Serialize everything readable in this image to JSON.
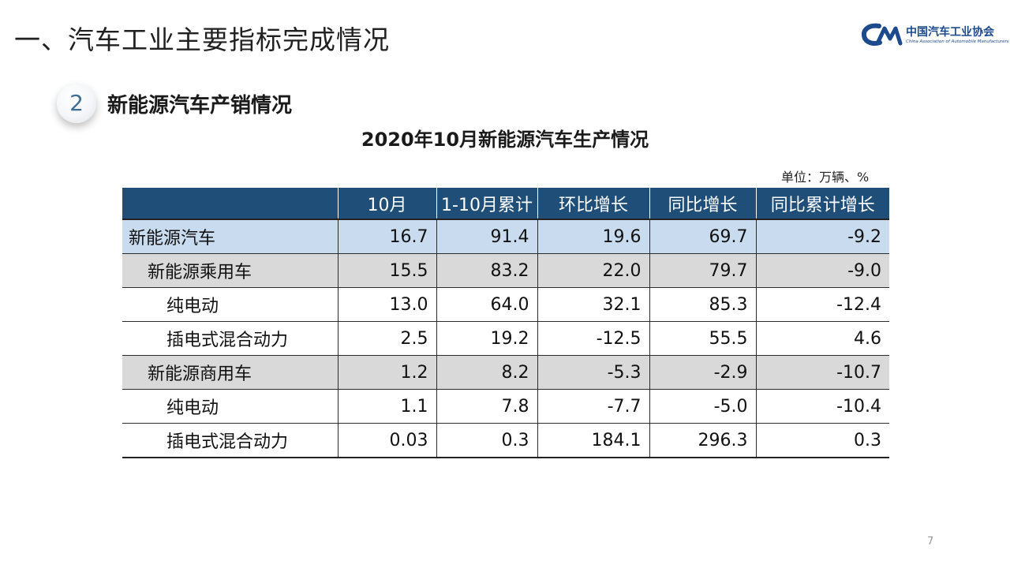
{
  "header": {
    "slide_title": "一、汽车工业主要指标完成情况",
    "logo_name": "中国汽车工业协会",
    "logo_sub": "China Association of Automobile Manufacturers"
  },
  "section": {
    "number": "2",
    "title": "新能源汽车产销情况"
  },
  "table": {
    "title": "2020年10月新能源汽车生产情况",
    "unit": "单位：万辆、%",
    "columns": [
      "",
      "10月",
      "1-10月累计",
      "环比增长",
      "同比增长",
      "同比累计增长"
    ],
    "rows": [
      {
        "label": "新能源汽车",
        "values": [
          "16.7",
          "91.4",
          "19.6",
          "69.7",
          "-9.2"
        ]
      },
      {
        "label": "新能源乘用车",
        "values": [
          "15.5",
          "83.2",
          "22.0",
          "79.7",
          "-9.0"
        ]
      },
      {
        "label": "纯电动",
        "values": [
          "13.0",
          "64.0",
          "32.1",
          "85.3",
          "-12.4"
        ]
      },
      {
        "label": "插电式混合动力",
        "values": [
          "2.5",
          "19.2",
          "-12.5",
          "55.5",
          "4.6"
        ]
      },
      {
        "label": "新能源商用车",
        "values": [
          "1.2",
          "8.2",
          "-5.3",
          "-2.9",
          "-10.7"
        ]
      },
      {
        "label": "纯电动",
        "values": [
          "1.1",
          "7.8",
          "-7.7",
          "-5.0",
          "-10.4"
        ]
      },
      {
        "label": "插电式混合动力",
        "values": [
          "0.03",
          "0.3",
          "184.1",
          "296.3",
          "0.3"
        ]
      }
    ]
  },
  "page_number": "7",
  "colors": {
    "header_bg": "#1f4e79",
    "total_row_bg": "#c9dcef",
    "group_row_bg": "#d9d9d9",
    "logo_blue": "#1d4a8c"
  }
}
